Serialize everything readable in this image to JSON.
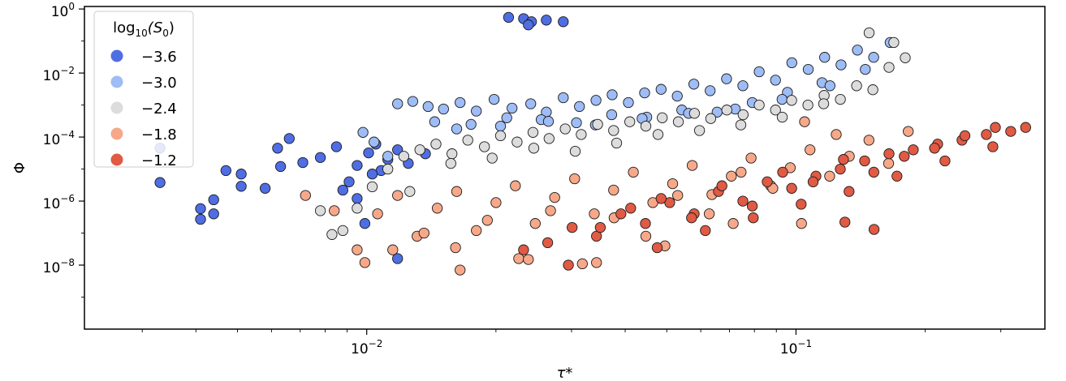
{
  "chart_data": {
    "type": "scatter",
    "title": "",
    "xlabel": "τ*",
    "ylabel": "Φ",
    "xscale": "log",
    "yscale": "log",
    "xlim": [
      0.0022,
      0.38
    ],
    "ylim": [
      1e-10,
      1.2
    ],
    "x_ticks": [
      {
        "value": 0.01,
        "label": "10",
        "exp": "−2"
      },
      {
        "value": 0.1,
        "label": "10",
        "exp": "−1"
      }
    ],
    "y_ticks": [
      {
        "value": 1,
        "label": "10",
        "exp": "0"
      },
      {
        "value": 0.01,
        "label": "10",
        "exp": "−2"
      },
      {
        "value": 0.0001,
        "label": "10",
        "exp": "−4"
      },
      {
        "value": 1e-06,
        "label": "10",
        "exp": "−6"
      },
      {
        "value": 1e-08,
        "label": "10",
        "exp": "−8"
      }
    ],
    "grid": false,
    "legend": {
      "placement": "upper-left",
      "title": "log₁₀(S₀)",
      "title_base": "log",
      "title_sub": "10",
      "title_arg": "(S",
      "title_arg_sub": "0",
      "title_close": ")"
    },
    "series": [
      {
        "name": "−3.6",
        "color": "#4f6ee3",
        "x": [
          0.0033,
          0.0033,
          0.0041,
          0.0041,
          0.0044,
          0.0044,
          0.0047,
          0.0051,
          0.0051,
          0.0058,
          0.0062,
          0.0063,
          0.0066,
          0.0071,
          0.0078,
          0.0085,
          0.0091,
          0.0095,
          0.0101,
          0.0105,
          0.0108,
          0.0112,
          0.0118,
          0.0125,
          0.0137,
          0.0118,
          0.0095,
          0.0088,
          0.0103,
          0.0099,
          0.0214,
          0.0232,
          0.0242,
          0.0238,
          0.0262,
          0.0287
        ],
        "y": [
          3.8e-06,
          4.5e-05,
          2.7e-07,
          5.8e-07,
          4e-07,
          1.1e-06,
          9e-06,
          7e-06,
          2.9e-06,
          2.5e-06,
          4.5e-05,
          1.2e-05,
          9e-05,
          1.6e-05,
          2.3e-05,
          5e-05,
          4e-06,
          1.3e-05,
          3.2e-05,
          6e-05,
          9e-06,
          2e-05,
          4e-05,
          1.5e-05,
          3e-05,
          1.6e-08,
          1.2e-06,
          2.2e-06,
          7e-06,
          2e-07,
          0.55,
          0.5,
          0.4,
          0.32,
          0.45,
          0.4
        ]
      },
      {
        "name": "−3.0",
        "color": "#9ebcf5",
        "x": [
          0.0118,
          0.0128,
          0.0139,
          0.0151,
          0.0165,
          0.018,
          0.0198,
          0.0218,
          0.0241,
          0.0262,
          0.0287,
          0.0313,
          0.0342,
          0.0373,
          0.0407,
          0.0444,
          0.0485,
          0.0529,
          0.0578,
          0.0631,
          0.0689,
          0.0752,
          0.0821,
          0.0896,
          0.0978,
          0.1068,
          0.1166,
          0.1273,
          0.139,
          0.1517,
          0.1657,
          0.0144,
          0.0175,
          0.0212,
          0.0255,
          0.0308,
          0.0372,
          0.0449,
          0.0542,
          0.0655,
          0.0791,
          0.0955,
          0.115,
          0.0098,
          0.0104,
          0.0112,
          0.0162,
          0.0205,
          0.0265,
          0.0341,
          0.0438,
          0.0562,
          0.0722,
          0.0928,
          0.12,
          0.145
        ],
        "y": [
          0.0011,
          0.0013,
          0.0009,
          0.00075,
          0.0012,
          0.00065,
          0.0015,
          0.0008,
          0.0011,
          0.0006,
          0.0017,
          0.0009,
          0.0014,
          0.0021,
          0.0012,
          0.0024,
          0.0031,
          0.0019,
          0.0045,
          0.0028,
          0.0066,
          0.004,
          0.011,
          0.006,
          0.021,
          0.013,
          0.031,
          0.018,
          0.052,
          0.031,
          0.09,
          0.0003,
          0.00025,
          0.0004,
          0.00035,
          0.00028,
          0.0005,
          0.00042,
          0.0007,
          0.0006,
          0.0012,
          0.0025,
          0.005,
          0.00014,
          7e-05,
          2.5e-05,
          0.00018,
          0.00022,
          0.00031,
          0.00024,
          0.00038,
          0.00055,
          0.00075,
          0.0015,
          0.004,
          0.013
        ]
      },
      {
        "name": "−2.4",
        "color": "#dcdcdc",
        "x": [
          0.0088,
          0.0095,
          0.0103,
          0.0112,
          0.0122,
          0.0133,
          0.0145,
          0.0158,
          0.0172,
          0.0188,
          0.0205,
          0.0224,
          0.0244,
          0.0266,
          0.029,
          0.0316,
          0.0345,
          0.0376,
          0.041,
          0.0447,
          0.0488,
          0.0532,
          0.058,
          0.0633,
          0.069,
          0.0753,
          0.0821,
          0.0896,
          0.0977,
          0.1066,
          0.1163,
          0.1269,
          0.1384,
          0.151,
          0.1647,
          0.1797,
          0.0078,
          0.0083,
          0.0126,
          0.0157,
          0.0196,
          0.0245,
          0.0306,
          0.0382,
          0.0477,
          0.0596,
          0.0744,
          0.0929,
          0.116,
          0.148,
          0.169
        ],
        "y": [
          1.2e-07,
          6e-07,
          2.8e-06,
          1e-05,
          2.5e-05,
          4e-05,
          6e-05,
          3e-05,
          8e-05,
          5e-05,
          0.00011,
          7e-05,
          0.00014,
          9e-05,
          0.00018,
          0.00012,
          0.00025,
          0.00016,
          0.0003,
          0.00022,
          0.0004,
          0.0003,
          0.00055,
          0.00038,
          0.0007,
          0.0005,
          0.001,
          0.0007,
          0.0014,
          0.001,
          0.002,
          0.0015,
          0.004,
          0.003,
          0.015,
          0.03,
          5e-07,
          9e-08,
          2e-06,
          1.5e-05,
          2.2e-05,
          4.5e-05,
          3.6e-05,
          6.5e-05,
          0.00012,
          0.00016,
          0.00024,
          0.00042,
          0.0011,
          0.18,
          0.09
        ]
      },
      {
        "name": "−1.8",
        "color": "#f7a889",
        "x": [
          0.0072,
          0.0084,
          0.0095,
          0.0106,
          0.0118,
          0.0131,
          0.0146,
          0.0162,
          0.018,
          0.02,
          0.0222,
          0.0247,
          0.0274,
          0.0305,
          0.0339,
          0.0376,
          0.0418,
          0.0464,
          0.0516,
          0.0573,
          0.0637,
          0.0707,
          0.0786,
          0.0873,
          0.097,
          0.1078,
          0.1198,
          0.1331,
          0.1479,
          0.1643,
          0.1826,
          0.0099,
          0.0115,
          0.0136,
          0.0161,
          0.0191,
          0.0226,
          0.0268,
          0.0318,
          0.0377,
          0.0447,
          0.053,
          0.0628,
          0.0745,
          0.0883,
          0.1047,
          0.1241,
          0.0165,
          0.0238,
          0.0343,
          0.0495,
          0.0714,
          0.103
        ],
        "y": [
          1.5e-06,
          5e-07,
          3e-08,
          4e-07,
          1.5e-06,
          8e-08,
          6e-07,
          2e-06,
          1.2e-07,
          9e-07,
          3e-06,
          2e-07,
          1.3e-06,
          5e-06,
          4e-07,
          2.2e-06,
          8e-06,
          9e-07,
          3.5e-06,
          1.3e-05,
          1.6e-06,
          6e-06,
          2.2e-05,
          3e-06,
          1.1e-05,
          4e-05,
          6e-06,
          2.5e-05,
          8e-05,
          1.5e-05,
          0.00015,
          1.2e-08,
          3e-08,
          1e-07,
          3.5e-08,
          2.5e-07,
          1.6e-08,
          5e-07,
          1.1e-08,
          3e-07,
          8e-08,
          1.5e-06,
          4e-07,
          8e-06,
          2.5e-06,
          0.0003,
          0.00012,
          7e-09,
          1.5e-08,
          1.2e-08,
          4e-08,
          2e-07,
          2e-07
        ]
      },
      {
        "name": "−1.2",
        "color": "#e05a44",
        "x": [
          0.0232,
          0.0264,
          0.0301,
          0.0343,
          0.0391,
          0.0446,
          0.0508,
          0.0579,
          0.066,
          0.0752,
          0.0857,
          0.0977,
          0.1113,
          0.1268,
          0.1445,
          0.1647,
          0.1876,
          0.2138,
          0.2436,
          0.2776,
          0.3163,
          0.035,
          0.0412,
          0.0485,
          0.0571,
          0.0672,
          0.0791,
          0.0931,
          0.1096,
          0.129,
          0.1518,
          0.1787,
          0.2103,
          0.2475,
          0.2913,
          0.3428,
          0.0295,
          0.0475,
          0.0615,
          0.0795,
          0.1028,
          0.1329,
          0.1719,
          0.2223,
          0.2874,
          0.152,
          0.13
        ],
        "y": [
          3e-08,
          5e-08,
          1.5e-07,
          8e-08,
          4e-07,
          2e-07,
          9e-07,
          4e-07,
          2e-06,
          1e-06,
          4e-06,
          2.5e-06,
          6e-06,
          1e-05,
          1.8e-05,
          3e-05,
          4e-05,
          6e-05,
          8e-05,
          0.00012,
          0.00015,
          1.5e-07,
          6e-07,
          1.2e-06,
          3e-07,
          3e-06,
          7e-07,
          8e-06,
          4e-06,
          2e-05,
          8e-06,
          2.5e-05,
          4.5e-05,
          0.00011,
          0.0002,
          0.0002,
          1e-08,
          3.5e-08,
          1.2e-07,
          3e-07,
          8e-07,
          2e-06,
          6e-06,
          1.8e-05,
          5e-05,
          1.3e-07,
          2.2e-07
        ]
      }
    ]
  }
}
